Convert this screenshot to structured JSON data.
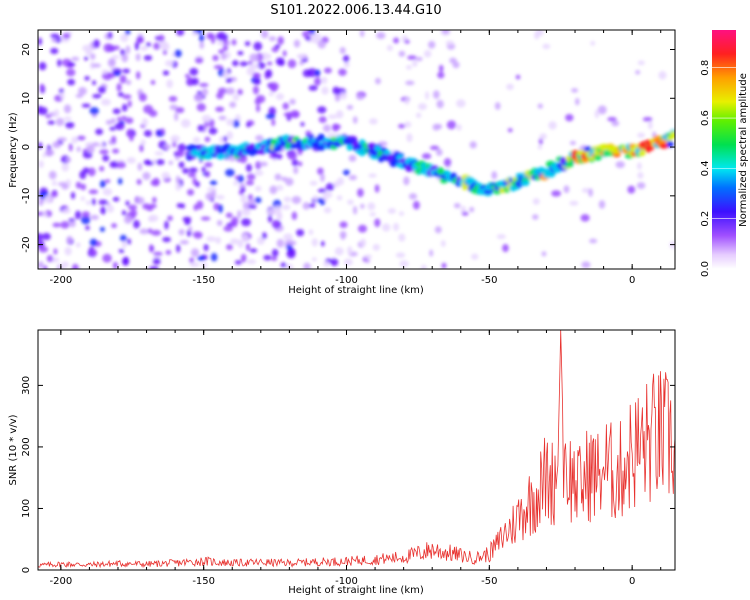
{
  "title": "S101.2022.006.13.44.G10",
  "chart_data": [
    {
      "type": "heatmap",
      "xlabel": "Height of straight line (km)",
      "ylabel": "Frequency (Hz)",
      "xlim": [
        -208,
        15
      ],
      "ylim": [
        -25,
        24
      ],
      "xticks": [
        -200,
        -150,
        -100,
        -50,
        0
      ],
      "yticks": [
        20,
        10,
        0,
        -10,
        -20
      ],
      "colorbar": {
        "label": "Normalized spectral amplitude",
        "range": [
          0,
          0.95
        ],
        "ticks": [
          0.0,
          0.2,
          0.4,
          0.6,
          0.8
        ]
      },
      "ridge": {
        "description_points_x": [
          -155,
          -140,
          -120,
          -100,
          -85,
          -70,
          -55,
          -48,
          -40,
          -30,
          -20,
          -10,
          0,
          10,
          15
        ],
        "description_points_y": [
          -1,
          -1,
          1,
          1,
          -2,
          -5,
          -8,
          -9,
          -7,
          -5,
          -2,
          -1,
          -1,
          1,
          2
        ]
      }
    },
    {
      "type": "line",
      "xlabel": "Height of straight line (km)",
      "ylabel": "SNR (10 * v/v)",
      "xlim": [
        -208,
        15
      ],
      "ylim": [
        0,
        390
      ],
      "xticks": [
        -200,
        -150,
        -100,
        -50,
        0
      ],
      "yticks": [
        0,
        100,
        200,
        300
      ],
      "series": [
        {
          "name": "SNR",
          "color": "#e8322f",
          "x": [
            -208,
            -200,
            -190,
            -180,
            -170,
            -160,
            -150,
            -140,
            -130,
            -120,
            -110,
            -100,
            -90,
            -80,
            -75,
            -70,
            -65,
            -60,
            -55,
            -50,
            -47,
            -45,
            -42,
            -40,
            -37,
            -35,
            -32,
            -30,
            -28,
            -26,
            -25,
            -24,
            -22,
            -20,
            -18,
            -15,
            -12,
            -10,
            -8,
            -5,
            -2,
            0,
            3,
            6,
            9,
            12,
            15
          ],
          "values": [
            8,
            10,
            9,
            11,
            10,
            12,
            15,
            12,
            13,
            12,
            14,
            15,
            18,
            22,
            28,
            35,
            30,
            25,
            20,
            28,
            45,
            60,
            75,
            90,
            110,
            120,
            140,
            160,
            150,
            170,
            390,
            200,
            160,
            150,
            140,
            170,
            160,
            180,
            170,
            160,
            190,
            200,
            210,
            220,
            230,
            225,
            215
          ]
        }
      ]
    }
  ]
}
